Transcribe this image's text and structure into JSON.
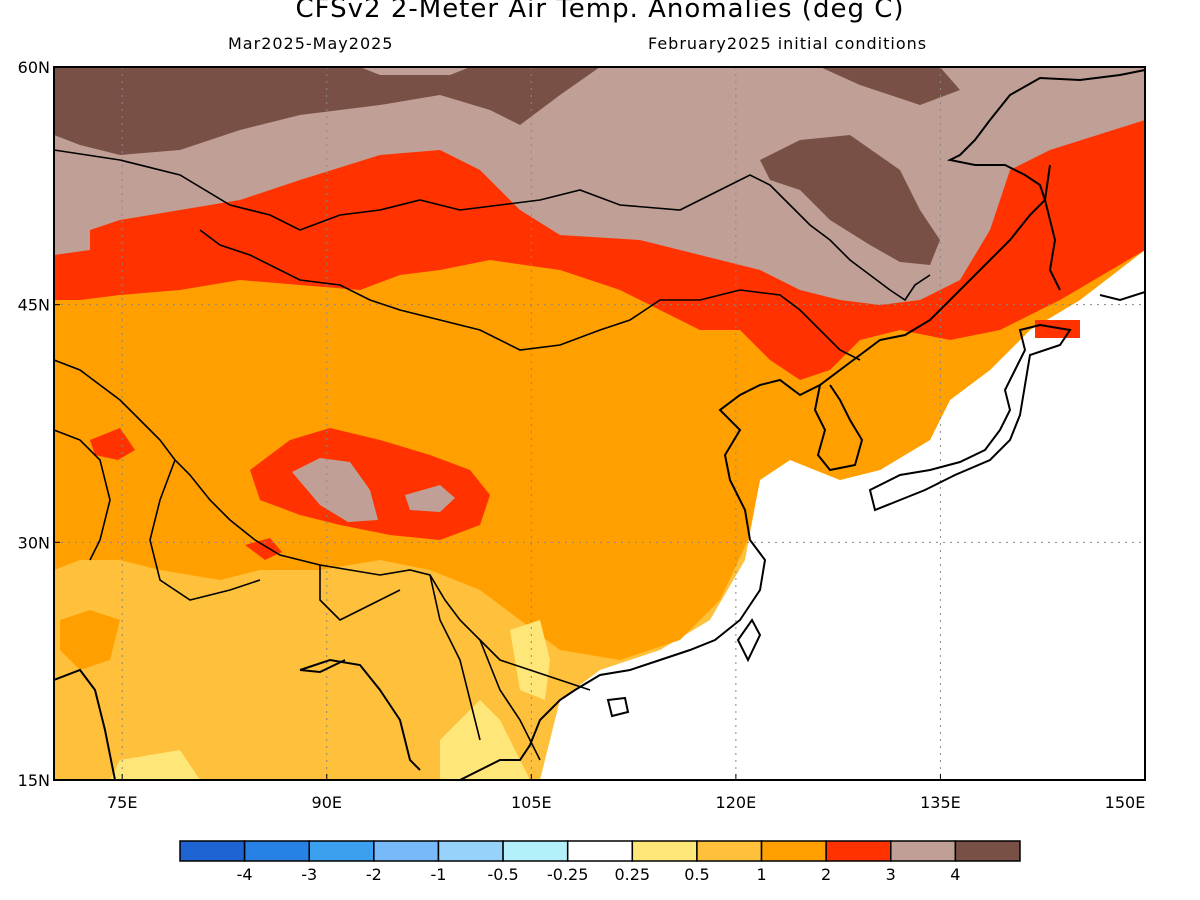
{
  "title": "CFSv2 2-Meter Air Temp. Anomalies (deg C)",
  "subtitle_left": "Mar2025-May2025",
  "subtitle_right": "February2025 initial conditions",
  "map": {
    "lon_range": [
      70,
      150
    ],
    "lat_range": [
      15,
      60
    ],
    "lat_ticks": [
      {
        "value": 60,
        "label": "60N"
      },
      {
        "value": 45,
        "label": "45N"
      },
      {
        "value": 30,
        "label": "30N"
      },
      {
        "value": 15,
        "label": "15N"
      }
    ],
    "lon_ticks": [
      {
        "value": 75,
        "label": "75E"
      },
      {
        "value": 90,
        "label": "90E"
      },
      {
        "value": 105,
        "label": "105E"
      },
      {
        "value": 120,
        "label": "120E"
      },
      {
        "value": 135,
        "label": "135E"
      },
      {
        "value": 150,
        "label": "150E"
      }
    ],
    "gridlines": "dotted"
  },
  "colorbar": {
    "bins": [
      {
        "color": "#1e64d2"
      },
      {
        "color": "#2882e6"
      },
      {
        "color": "#3ca0f0"
      },
      {
        "color": "#78b9fa"
      },
      {
        "color": "#96d2fa"
      },
      {
        "color": "#b4f0fa"
      },
      {
        "color": "#ffffff"
      },
      {
        "color": "#ffe678"
      },
      {
        "color": "#ffc03c"
      },
      {
        "color": "#ffa000"
      },
      {
        "color": "#ff3200"
      },
      {
        "color": "#c0a096"
      },
      {
        "color": "#785046"
      }
    ],
    "labels": [
      "-4",
      "-3",
      "-2",
      "-1",
      "-0.5",
      "-0.25",
      "0.25",
      "0.5",
      "1",
      "2",
      "3",
      "4"
    ]
  },
  "anomaly_colors": {
    "light_yellow": "#ffe678",
    "light_orange": "#ffc03c",
    "orange": "#ffa000",
    "red": "#ff3200",
    "rose": "#c0a096",
    "brown": "#785046"
  }
}
